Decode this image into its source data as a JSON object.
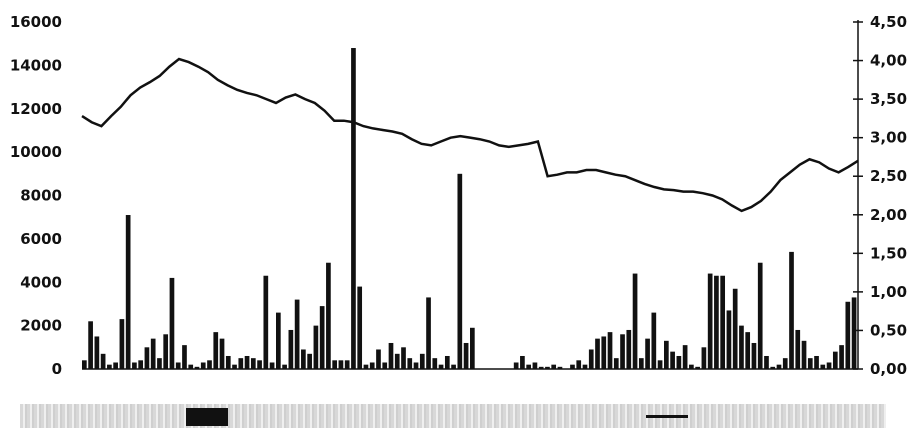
{
  "chart_data": {
    "type": "bar",
    "title": "",
    "xlabel": "",
    "ylabel_left": "",
    "ylabel_right": "",
    "ylim_left": [
      0,
      16000
    ],
    "ylim_right": [
      0,
      4.5
    ],
    "y_ticks_left": [
      "0",
      "2000",
      "4000",
      "6000",
      "8000",
      "10000",
      "12000",
      "14000",
      "16000"
    ],
    "y_ticks_right": [
      "0,00",
      "0,50",
      "1,00",
      "1,50",
      "2,00",
      "2,50",
      "3,00",
      "3,50",
      "4,00",
      "4,50"
    ],
    "grid": false,
    "legend": "bottom",
    "series": [
      {
        "name": "",
        "type": "bar",
        "axis": "left",
        "values": [
          400,
          2200,
          1500,
          700,
          200,
          300,
          2300,
          7100,
          300,
          400,
          1000,
          1400,
          500,
          1600,
          4200,
          300,
          1100,
          200,
          100,
          300,
          400,
          1700,
          1400,
          600,
          200,
          500,
          600,
          500,
          400,
          4300,
          300,
          2600,
          200,
          1800,
          3200,
          900,
          700,
          2000,
          2900,
          4900,
          400,
          400,
          400,
          14800,
          3800,
          200,
          300,
          900,
          300,
          1200,
          700,
          1000,
          500,
          300,
          700,
          3300,
          500,
          200,
          600,
          200,
          9000,
          1200,
          1900,
          0,
          0,
          0,
          0,
          0,
          0,
          300,
          600,
          200,
          300,
          100,
          100,
          200,
          100,
          0,
          200,
          400,
          200,
          900,
          1400,
          1500,
          1700,
          500,
          1600,
          1800,
          4400,
          500,
          1400,
          2600,
          400,
          1300,
          800,
          600,
          1100,
          200,
          100,
          1000,
          4400,
          4300,
          4300,
          2700,
          3700,
          2000,
          1700,
          1200,
          4900,
          600,
          100,
          200,
          500,
          5400,
          1800,
          1300,
          500,
          600,
          200,
          300,
          800,
          1100,
          3100,
          3300
        ]
      },
      {
        "name": "",
        "type": "line",
        "axis": "right",
        "values": [
          3.28,
          3.2,
          3.15,
          3.28,
          3.4,
          3.55,
          3.65,
          3.72,
          3.8,
          3.92,
          4.02,
          3.98,
          3.92,
          3.85,
          3.75,
          3.68,
          3.62,
          3.58,
          3.55,
          3.5,
          3.45,
          3.52,
          3.56,
          3.5,
          3.45,
          3.35,
          3.22,
          3.22,
          3.2,
          3.15,
          3.12,
          3.1,
          3.08,
          3.05,
          2.98,
          2.92,
          2.9,
          2.95,
          3.0,
          3.02,
          3.0,
          2.98,
          2.95,
          2.9,
          2.88,
          2.9,
          2.92,
          2.95,
          2.5,
          2.52,
          2.55,
          2.55,
          2.58,
          2.58,
          2.55,
          2.52,
          2.5,
          2.45,
          2.4,
          2.36,
          2.33,
          2.32,
          2.3,
          2.3,
          2.28,
          2.25,
          2.2,
          2.12,
          2.05,
          2.1,
          2.18,
          2.3,
          2.45,
          2.55,
          2.65,
          2.72,
          2.68,
          2.6,
          2.55,
          2.62,
          2.7
        ]
      }
    ]
  }
}
